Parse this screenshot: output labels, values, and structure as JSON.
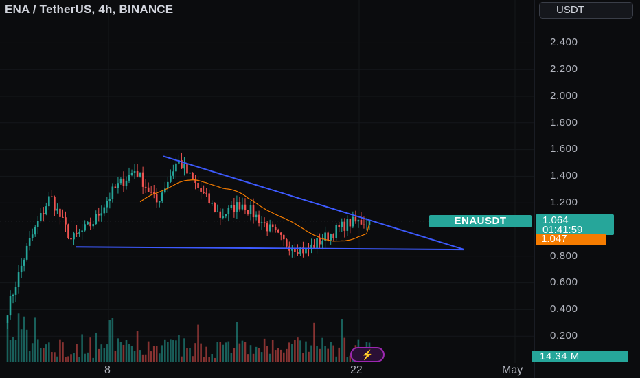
{
  "header": {
    "title": "ENA / TetherUS, 4h, BINANCE",
    "currency_button": "USDT"
  },
  "price_axis": {
    "labels": [
      "2.400",
      "2.200",
      "2.000",
      "1.800",
      "1.600",
      "1.400",
      "1.200",
      "0.800",
      "0.600",
      "0.400",
      "0.200"
    ]
  },
  "time_axis": {
    "labels": [
      "8",
      "22",
      "May"
    ]
  },
  "badges": {
    "symbol": "ENAUSDT",
    "last_price": "1.064",
    "countdown": "01:41:59",
    "ma_value": "1.047",
    "volume": "14.34 M"
  },
  "colors": {
    "background": "#0b0c0e",
    "up": "#26a69a",
    "down": "#ef5350",
    "trendline": "#3d5afe",
    "moving_average": "#f57c00"
  },
  "chart_data": {
    "type": "candlestick",
    "symbol": "ENA / TetherUS",
    "interval": "4h",
    "exchange": "BINANCE",
    "ylim": [
      0,
      2.5
    ],
    "y_ticks": [
      0.2,
      0.4,
      0.6,
      0.8,
      1.2,
      1.4,
      1.6,
      1.8,
      2.0,
      2.2,
      2.4
    ],
    "x_ticks": [
      "8",
      "22",
      "May"
    ],
    "key_closes": [
      0.4,
      0.9,
      1.25,
      0.92,
      1.05,
      1.3,
      1.45,
      1.2,
      1.52,
      1.3,
      1.1,
      1.2,
      1.05,
      0.9,
      0.84,
      0.95,
      1.05,
      1.064
    ],
    "last_price": 1.064,
    "moving_average_last": 1.047,
    "volume_last": "14.34 M",
    "trendlines": [
      {
        "name": "descending resistance",
        "from": 1.55,
        "to": 0.85
      },
      {
        "name": "horizontal support",
        "from": 0.87,
        "to": 0.85
      }
    ]
  }
}
